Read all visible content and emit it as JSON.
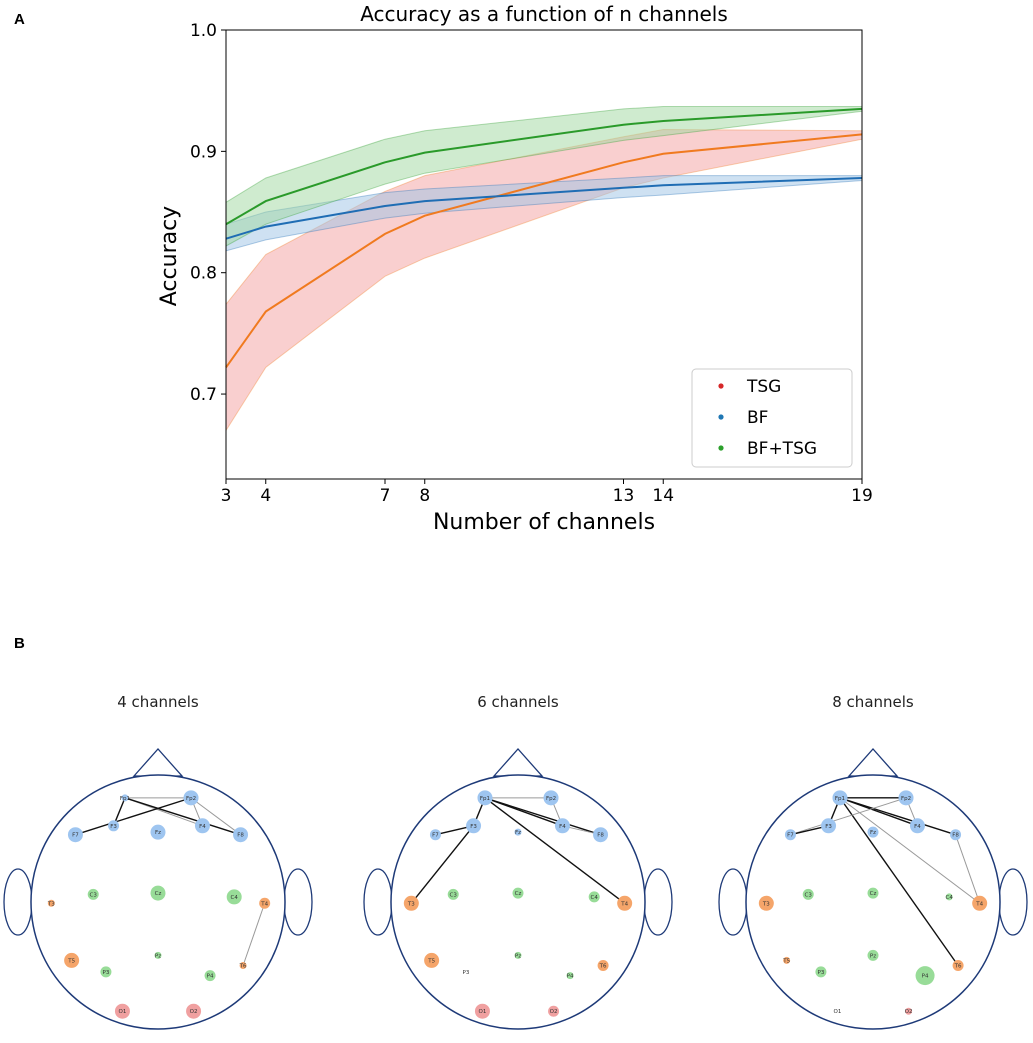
{
  "panel_labels": {
    "a": "A",
    "b": "B"
  },
  "colors": {
    "tsg_line": "#f07a1f",
    "tsg_band": "#f4a0a0",
    "tsg_marker": "#d62728",
    "bf_line": "#1f6db4",
    "bf_band": "#9ec3e6",
    "bf_marker": "#1f77b4",
    "bftsg_line": "#2a9a2a",
    "bftsg_band": "#9fd89f",
    "bftsg_marker": "#2ca02c",
    "node_blue": "#9ec5f0",
    "node_orange": "#f5a56a",
    "node_green": "#98dc98",
    "node_red": "#f0a0a0",
    "head_outline": "#1e3a78"
  },
  "chart_data": {
    "type": "line",
    "title": "Accuracy as a function of n channels",
    "xlabel": "Number of channels",
    "ylabel": "Accuracy",
    "xlim": [
      3,
      19
    ],
    "ylim": [
      0.63,
      1.0
    ],
    "xticks": [
      3,
      4,
      7,
      8,
      13,
      14,
      19
    ],
    "yticks": [
      0.7,
      0.8,
      0.9,
      1.0
    ],
    "ytick_labels": [
      "0.7",
      "0.8",
      "0.9",
      "1.0"
    ],
    "legend_position": "lower-right",
    "series": [
      {
        "name": "TSG",
        "line_color_key": "tsg_line",
        "band_color_key": "tsg_band",
        "marker_color_key": "tsg_marker",
        "x": [
          3,
          4,
          7,
          8,
          13,
          14,
          19
        ],
        "mean": [
          0.722,
          0.768,
          0.832,
          0.847,
          0.891,
          0.898,
          0.914
        ],
        "lower": [
          0.67,
          0.722,
          0.797,
          0.812,
          0.87,
          0.878,
          0.91
        ],
        "upper": [
          0.774,
          0.815,
          0.867,
          0.88,
          0.912,
          0.918,
          0.917
        ]
      },
      {
        "name": "BF",
        "line_color_key": "bf_line",
        "band_color_key": "bf_band",
        "marker_color_key": "bf_marker",
        "x": [
          3,
          4,
          7,
          8,
          13,
          14,
          19
        ],
        "mean": [
          0.828,
          0.838,
          0.855,
          0.859,
          0.87,
          0.872,
          0.878
        ],
        "lower": [
          0.818,
          0.827,
          0.845,
          0.849,
          0.862,
          0.864,
          0.876
        ],
        "upper": [
          0.84,
          0.85,
          0.866,
          0.869,
          0.878,
          0.88,
          0.88
        ]
      },
      {
        "name": "BF+TSG",
        "line_color_key": "bftsg_line",
        "band_color_key": "bftsg_band",
        "marker_color_key": "bftsg_marker",
        "x": [
          3,
          4,
          7,
          8,
          13,
          14,
          19
        ],
        "mean": [
          0.84,
          0.859,
          0.891,
          0.899,
          0.922,
          0.925,
          0.935
        ],
        "lower": [
          0.822,
          0.84,
          0.873,
          0.882,
          0.909,
          0.913,
          0.933
        ],
        "upper": [
          0.858,
          0.878,
          0.91,
          0.917,
          0.935,
          0.937,
          0.937
        ]
      }
    ]
  },
  "head_maps": [
    {
      "title": "4 channels",
      "nodes": [
        {
          "label": "Fp1",
          "group": "node_blue",
          "size": 0
        },
        {
          "label": "Fp2",
          "group": "node_blue",
          "size": 2
        },
        {
          "label": "F3",
          "group": "node_blue",
          "size": 1
        },
        {
          "label": "F7",
          "group": "node_blue",
          "size": 2
        },
        {
          "label": "Fz",
          "group": "node_blue",
          "size": 2
        },
        {
          "label": "F4",
          "group": "node_blue",
          "size": 2
        },
        {
          "label": "F8",
          "group": "node_blue",
          "size": 2
        },
        {
          "label": "T3",
          "group": "node_orange",
          "size": 0
        },
        {
          "label": "C3",
          "group": "node_green",
          "size": 1
        },
        {
          "label": "Cz",
          "group": "node_green",
          "size": 2
        },
        {
          "label": "C4",
          "group": "node_green",
          "size": 2
        },
        {
          "label": "T4",
          "group": "node_orange",
          "size": 1
        },
        {
          "label": "T5",
          "group": "node_orange",
          "size": 2
        },
        {
          "label": "P3",
          "group": "node_green",
          "size": 1
        },
        {
          "label": "Pz",
          "group": "node_green",
          "size": 0
        },
        {
          "label": "P4",
          "group": "node_green",
          "size": 1
        },
        {
          "label": "T6",
          "group": "node_orange",
          "size": 0
        },
        {
          "label": "O1",
          "group": "node_red",
          "size": 2
        },
        {
          "label": "O2",
          "group": "node_red",
          "size": 2
        }
      ],
      "edges": [
        [
          "Fp1",
          "Fp2",
          "thin"
        ],
        [
          "Fp1",
          "F3",
          "thick"
        ],
        [
          "Fp1",
          "F4",
          "thin"
        ],
        [
          "Fp1",
          "F8",
          "thick"
        ],
        [
          "Fp2",
          "F7",
          "thick"
        ],
        [
          "Fp2",
          "F4",
          "thin"
        ],
        [
          "Fp2",
          "F8",
          "thin"
        ],
        [
          "T4",
          "T6",
          "thin"
        ]
      ]
    },
    {
      "title": "6 channels",
      "nodes": [
        {
          "label": "Fp1",
          "group": "node_blue",
          "size": 2
        },
        {
          "label": "Fp2",
          "group": "node_blue",
          "size": 2
        },
        {
          "label": "F3",
          "group": "node_blue",
          "size": 2
        },
        {
          "label": "F7",
          "group": "node_blue",
          "size": 1
        },
        {
          "label": "Fz",
          "group": "node_blue",
          "size": 0
        },
        {
          "label": "F4",
          "group": "node_blue",
          "size": 2
        },
        {
          "label": "F8",
          "group": "node_blue",
          "size": 2
        },
        {
          "label": "T3",
          "group": "node_orange",
          "size": 2
        },
        {
          "label": "C3",
          "group": "node_green",
          "size": 1
        },
        {
          "label": "Cz",
          "group": "node_green",
          "size": 1
        },
        {
          "label": "C4",
          "group": "node_green",
          "size": 1
        },
        {
          "label": "T4",
          "group": "node_orange",
          "size": 2
        },
        {
          "label": "T5",
          "group": "node_orange",
          "size": 2
        },
        {
          "label": "P3",
          "group": "node_none",
          "size": 0
        },
        {
          "label": "Pz",
          "group": "node_green",
          "size": 0
        },
        {
          "label": "P4",
          "group": "node_green",
          "size": 0
        },
        {
          "label": "T6",
          "group": "node_orange",
          "size": 1
        },
        {
          "label": "O1",
          "group": "node_red",
          "size": 2
        },
        {
          "label": "O2",
          "group": "node_red",
          "size": 1
        }
      ],
      "edges": [
        [
          "Fp1",
          "Fp2",
          "thin"
        ],
        [
          "Fp1",
          "F3",
          "thick"
        ],
        [
          "Fp1",
          "F4",
          "thick"
        ],
        [
          "Fp1",
          "F8",
          "thick"
        ],
        [
          "Fp1",
          "T4",
          "thick"
        ],
        [
          "Fp2",
          "F4",
          "thin"
        ],
        [
          "F3",
          "F7",
          "thick"
        ],
        [
          "F3",
          "T3",
          "thick"
        ],
        [
          "F4",
          "F8",
          "thin"
        ]
      ]
    },
    {
      "title": "8 channels",
      "nodes": [
        {
          "label": "Fp1",
          "group": "node_blue",
          "size": 2
        },
        {
          "label": "Fp2",
          "group": "node_blue",
          "size": 2
        },
        {
          "label": "F3",
          "group": "node_blue",
          "size": 2
        },
        {
          "label": "F7",
          "group": "node_blue",
          "size": 1
        },
        {
          "label": "Fz",
          "group": "node_blue",
          "size": 1
        },
        {
          "label": "F4",
          "group": "node_blue",
          "size": 2
        },
        {
          "label": "F8",
          "group": "node_blue",
          "size": 1
        },
        {
          "label": "T3",
          "group": "node_orange",
          "size": 2
        },
        {
          "label": "C3",
          "group": "node_green",
          "size": 1
        },
        {
          "label": "Cz",
          "group": "node_green",
          "size": 1
        },
        {
          "label": "C4",
          "group": "node_green",
          "size": 0
        },
        {
          "label": "T4",
          "group": "node_orange",
          "size": 2
        },
        {
          "label": "T5",
          "group": "node_orange",
          "size": 0
        },
        {
          "label": "P3",
          "group": "node_green",
          "size": 1
        },
        {
          "label": "Pz",
          "group": "node_green",
          "size": 1
        },
        {
          "label": "P4",
          "group": "node_green",
          "size": 3
        },
        {
          "label": "T6",
          "group": "node_orange",
          "size": 1
        },
        {
          "label": "O1",
          "group": "node_none",
          "size": 0
        },
        {
          "label": "O2",
          "group": "node_red",
          "size": 0
        }
      ],
      "edges": [
        [
          "Fp1",
          "Fp2",
          "thick"
        ],
        [
          "Fp1",
          "F3",
          "thick"
        ],
        [
          "Fp1",
          "F4",
          "thick"
        ],
        [
          "Fp1",
          "F8",
          "thick"
        ],
        [
          "Fp1",
          "T6",
          "thick"
        ],
        [
          "Fp1",
          "T4",
          "thin"
        ],
        [
          "Fp2",
          "F4",
          "thin"
        ],
        [
          "Fp2",
          "F7",
          "thin"
        ],
        [
          "F3",
          "F7",
          "thick"
        ],
        [
          "F8",
          "T4",
          "thin"
        ]
      ]
    }
  ]
}
